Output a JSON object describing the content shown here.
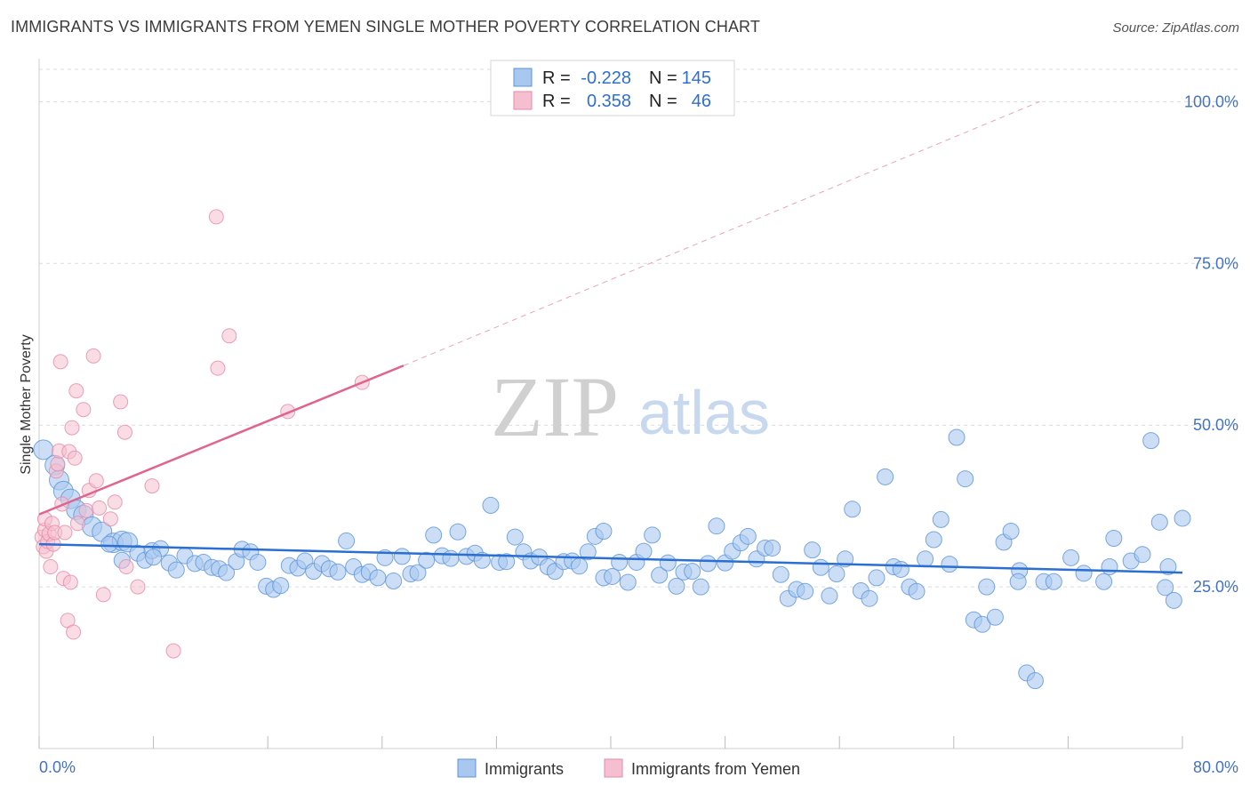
{
  "title": "IMMIGRANTS VS IMMIGRANTS FROM YEMEN SINGLE MOTHER POVERTY CORRELATION CHART",
  "source": "Source: ZipAtlas.com",
  "watermark": {
    "zip": "ZIP",
    "atlas": "atlas"
  },
  "colors": {
    "blue": "#a9c8ef",
    "blue_stroke": "#5b94d9",
    "blue_line": "#2a6fd1",
    "pink": "#f6bfd0",
    "pink_stroke": "#e68aa8",
    "pink_line": "#e0648d",
    "grid": "#d8dce3",
    "axis_text": "#4472c4"
  },
  "legend_top": {
    "r_label": "R =",
    "n_label": "N =",
    "rows": [
      {
        "r": "-0.228",
        "n": "145"
      },
      {
        "r": "0.358",
        "n": "46"
      }
    ]
  },
  "legend_bottom": [
    "Immigrants",
    "Immigrants from Yemen"
  ],
  "chart_data": {
    "type": "scatter",
    "ylabel": "Single Mother Poverty",
    "xlim": [
      0,
      80
    ],
    "ylim": [
      0,
      105
    ],
    "x_tick_labels": [
      "0.0%",
      "80.0%"
    ],
    "y_ticks": [
      25,
      50,
      75,
      100
    ],
    "y_tick_labels": [
      "25.0%",
      "50.0%",
      "75.0%",
      "100.0%"
    ],
    "grid": true,
    "series": [
      {
        "name": "Immigrants",
        "color": "#a9c8ef",
        "trend": {
          "x": [
            0,
            80
          ],
          "y": [
            31.6,
            27.2
          ]
        },
        "points": [
          [
            0.3,
            46.2
          ],
          [
            1.1,
            43.8
          ],
          [
            1.4,
            41.5
          ],
          [
            1.7,
            39.8
          ],
          [
            2.2,
            38.6
          ],
          [
            2.6,
            36.9
          ],
          [
            3.1,
            36.1
          ],
          [
            3.7,
            34.3
          ],
          [
            4.4,
            33.5
          ],
          [
            5.2,
            31.8
          ],
          [
            5.8,
            32.1
          ],
          [
            6.2,
            31.9
          ],
          [
            6.9,
            30.2
          ],
          [
            7.4,
            29.1
          ],
          [
            7.9,
            30.6
          ],
          [
            8.5,
            30.9
          ],
          [
            9.1,
            28.7
          ],
          [
            9.6,
            27.6
          ],
          [
            10.2,
            29.8
          ],
          [
            10.9,
            28.6
          ],
          [
            11.5,
            28.8
          ],
          [
            12.1,
            28.0
          ],
          [
            12.6,
            27.8
          ],
          [
            13.1,
            27.2
          ],
          [
            13.8,
            28.9
          ],
          [
            14.2,
            30.8
          ],
          [
            14.8,
            30.4
          ],
          [
            15.3,
            28.8
          ],
          [
            15.9,
            25.1
          ],
          [
            16.4,
            24.6
          ],
          [
            16.9,
            25.2
          ],
          [
            17.5,
            28.3
          ],
          [
            18.1,
            27.9
          ],
          [
            18.6,
            29.0
          ],
          [
            19.2,
            27.4
          ],
          [
            19.8,
            28.6
          ],
          [
            20.3,
            27.8
          ],
          [
            20.9,
            27.3
          ],
          [
            21.5,
            32.1
          ],
          [
            22.0,
            28.1
          ],
          [
            22.6,
            26.9
          ],
          [
            23.1,
            27.3
          ],
          [
            23.7,
            26.4
          ],
          [
            24.2,
            29.5
          ],
          [
            24.8,
            25.9
          ],
          [
            25.4,
            29.7
          ],
          [
            26.0,
            27.0
          ],
          [
            26.5,
            27.2
          ],
          [
            27.1,
            29.1
          ],
          [
            27.6,
            33.0
          ],
          [
            28.2,
            29.8
          ],
          [
            28.8,
            29.4
          ],
          [
            29.3,
            33.5
          ],
          [
            29.9,
            29.7
          ],
          [
            30.5,
            30.2
          ],
          [
            31.0,
            29.1
          ],
          [
            31.6,
            37.6
          ],
          [
            32.2,
            28.8
          ],
          [
            32.7,
            28.9
          ],
          [
            33.3,
            32.7
          ],
          [
            33.9,
            30.4
          ],
          [
            34.4,
            29.0
          ],
          [
            35.0,
            29.6
          ],
          [
            35.6,
            28.1
          ],
          [
            36.1,
            27.4
          ],
          [
            36.7,
            28.9
          ],
          [
            37.3,
            29.0
          ],
          [
            37.8,
            28.2
          ],
          [
            38.4,
            30.4
          ],
          [
            38.9,
            32.8
          ],
          [
            39.5,
            33.6
          ],
          [
            39.5,
            26.4
          ],
          [
            40.1,
            26.6
          ],
          [
            40.6,
            28.8
          ],
          [
            41.2,
            25.7
          ],
          [
            41.8,
            28.8
          ],
          [
            42.3,
            30.5
          ],
          [
            42.9,
            33.0
          ],
          [
            43.4,
            26.8
          ],
          [
            44.0,
            28.7
          ],
          [
            44.6,
            25.1
          ],
          [
            45.1,
            27.3
          ],
          [
            45.7,
            27.4
          ],
          [
            46.3,
            25.0
          ],
          [
            46.8,
            28.6
          ],
          [
            47.4,
            34.4
          ],
          [
            48.0,
            28.7
          ],
          [
            48.5,
            30.5
          ],
          [
            49.1,
            31.8
          ],
          [
            49.6,
            32.8
          ],
          [
            50.2,
            29.3
          ],
          [
            50.8,
            31.0
          ],
          [
            51.3,
            31.0
          ],
          [
            51.9,
            26.9
          ],
          [
            52.4,
            23.2
          ],
          [
            53.0,
            24.6
          ],
          [
            53.6,
            24.3
          ],
          [
            54.1,
            30.7
          ],
          [
            54.7,
            28.0
          ],
          [
            55.3,
            23.6
          ],
          [
            55.8,
            27.0
          ],
          [
            56.4,
            29.3
          ],
          [
            56.9,
            37.0
          ],
          [
            57.5,
            24.4
          ],
          [
            58.1,
            23.2
          ],
          [
            58.6,
            26.4
          ],
          [
            59.2,
            42.0
          ],
          [
            59.8,
            28.1
          ],
          [
            60.3,
            27.7
          ],
          [
            60.9,
            25.0
          ],
          [
            61.4,
            24.3
          ],
          [
            62.0,
            29.3
          ],
          [
            62.6,
            32.3
          ],
          [
            63.1,
            35.4
          ],
          [
            63.7,
            28.5
          ],
          [
            64.2,
            48.1
          ],
          [
            64.8,
            41.7
          ],
          [
            65.4,
            19.9
          ],
          [
            66.0,
            19.2
          ],
          [
            66.3,
            25.0
          ],
          [
            66.9,
            20.3
          ],
          [
            67.5,
            31.9
          ],
          [
            68.0,
            33.6
          ],
          [
            68.6,
            27.5
          ],
          [
            68.5,
            25.8
          ],
          [
            69.1,
            11.7
          ],
          [
            69.7,
            10.5
          ],
          [
            70.3,
            25.8
          ],
          [
            71.0,
            25.8
          ],
          [
            72.2,
            29.5
          ],
          [
            73.1,
            27.1
          ],
          [
            74.5,
            25.8
          ],
          [
            74.9,
            28.1
          ],
          [
            75.2,
            32.5
          ],
          [
            76.4,
            29.0
          ],
          [
            77.2,
            30.0
          ],
          [
            77.8,
            47.6
          ],
          [
            78.4,
            35.0
          ],
          [
            78.8,
            24.9
          ],
          [
            79.0,
            28.1
          ],
          [
            79.4,
            22.9
          ],
          [
            80.0,
            35.6
          ],
          [
            4.9,
            31.6
          ],
          [
            5.8,
            29.1
          ],
          [
            8.0,
            29.6
          ]
        ]
      },
      {
        "name": "Immigrants from Yemen",
        "color": "#f6bfd0",
        "trend": {
          "x": [
            0,
            25.5
          ],
          "y": [
            36.2,
            59.2
          ]
        },
        "trend_dashed": {
          "x": [
            25.5,
            70
          ],
          "y": [
            59.2,
            100
          ]
        },
        "points": [
          [
            0.2,
            32.7
          ],
          [
            0.3,
            31.2
          ],
          [
            0.4,
            33.8
          ],
          [
            0.4,
            35.5
          ],
          [
            0.5,
            30.5
          ],
          [
            0.6,
            32.0
          ],
          [
            0.7,
            33.2
          ],
          [
            0.8,
            28.1
          ],
          [
            0.9,
            34.8
          ],
          [
            1.0,
            31.6
          ],
          [
            1.1,
            33.4
          ],
          [
            1.2,
            42.9
          ],
          [
            1.3,
            44.0
          ],
          [
            1.4,
            46.0
          ],
          [
            1.5,
            59.8
          ],
          [
            1.6,
            37.8
          ],
          [
            1.7,
            26.3
          ],
          [
            1.8,
            33.4
          ],
          [
            2.0,
            19.8
          ],
          [
            2.1,
            45.9
          ],
          [
            2.2,
            25.7
          ],
          [
            2.3,
            49.6
          ],
          [
            2.4,
            18.0
          ],
          [
            2.5,
            44.9
          ],
          [
            2.6,
            55.3
          ],
          [
            2.7,
            34.8
          ],
          [
            3.1,
            52.4
          ],
          [
            3.3,
            36.8
          ],
          [
            3.5,
            39.9
          ],
          [
            3.8,
            60.7
          ],
          [
            4.0,
            41.4
          ],
          [
            4.2,
            37.2
          ],
          [
            4.5,
            23.8
          ],
          [
            5.0,
            35.5
          ],
          [
            5.3,
            38.1
          ],
          [
            5.7,
            53.6
          ],
          [
            6.0,
            48.9
          ],
          [
            6.1,
            28.1
          ],
          [
            6.9,
            25.0
          ],
          [
            7.9,
            40.6
          ],
          [
            9.4,
            15.1
          ],
          [
            12.4,
            82.2
          ],
          [
            12.5,
            58.8
          ],
          [
            13.3,
            63.8
          ],
          [
            17.4,
            52.1
          ],
          [
            22.6,
            56.6
          ]
        ]
      }
    ]
  }
}
